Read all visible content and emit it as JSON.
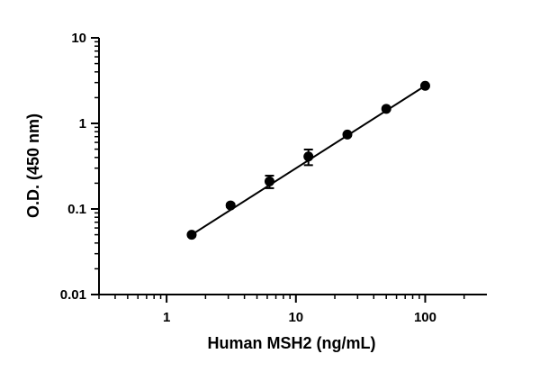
{
  "chart_data": {
    "type": "scatter",
    "xlabel": "Human MSH2 (ng/mL)",
    "ylabel": "O.D. (450 nm)",
    "x_scale": "log",
    "y_scale": "log",
    "xlim": [
      0.3,
      300
    ],
    "ylim": [
      0.01,
      10
    ],
    "x_tick_labels": [
      "1",
      "10",
      "100"
    ],
    "y_tick_labels": [
      "0.01",
      "0.1",
      "1",
      "10"
    ],
    "grid": false,
    "legend": "none",
    "series": [
      {
        "x": [
          1.5625,
          3.125,
          6.25,
          12.5,
          25,
          50,
          100
        ],
        "y": [
          0.05,
          0.11,
          0.21,
          0.41,
          0.74,
          1.48,
          2.75
        ],
        "error": [
          0.002,
          0.005,
          0.035,
          0.085,
          0.03,
          0.05,
          0.08
        ]
      }
    ],
    "fit_line": {
      "x_range": [
        1.5625,
        100
      ],
      "y_range": [
        0.05,
        2.75
      ]
    }
  }
}
